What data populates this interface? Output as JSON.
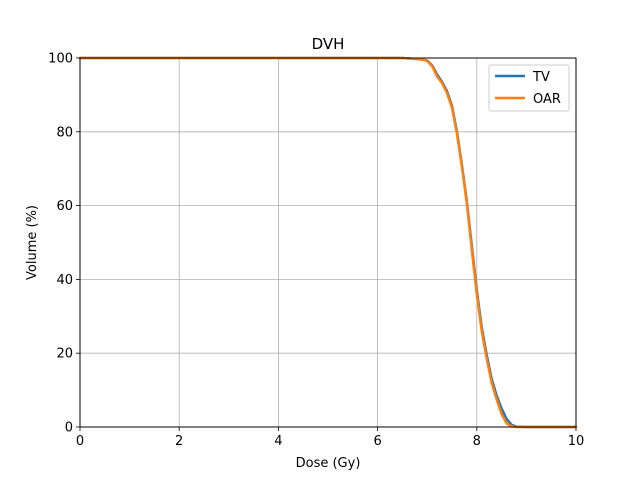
{
  "chart_data": {
    "type": "line",
    "title": "DVH",
    "xlabel": "Dose (Gy)",
    "ylabel": "Volume (%)",
    "xlim": [
      0,
      10
    ],
    "ylim": [
      0,
      100
    ],
    "xticks": [
      0,
      2,
      4,
      6,
      8,
      10
    ],
    "yticks": [
      0,
      20,
      40,
      60,
      80,
      100
    ],
    "xtick_labels": [
      "0",
      "2",
      "4",
      "6",
      "8",
      "10"
    ],
    "ytick_labels": [
      "0",
      "20",
      "40",
      "60",
      "80",
      "100"
    ],
    "grid": true,
    "legend_position": "top-right",
    "series": [
      {
        "name": "TV",
        "color": "#1f77b4",
        "x": [
          0,
          6.5,
          6.9,
          7.0,
          7.1,
          7.2,
          7.3,
          7.4,
          7.5,
          7.6,
          7.7,
          7.8,
          7.9,
          8.0,
          8.1,
          8.2,
          8.3,
          8.4,
          8.5,
          8.6,
          8.7,
          8.8,
          9.0,
          10
        ],
        "y": [
          100,
          100,
          99.6,
          99.3,
          98.0,
          95.5,
          93.5,
          91.0,
          87.0,
          80.0,
          71.0,
          61.0,
          49.0,
          37.0,
          27.0,
          19.5,
          13.0,
          8.5,
          5.0,
          2.2,
          0.6,
          0.1,
          0,
          0
        ]
      },
      {
        "name": "OAR",
        "color": "#ff7f0e",
        "x": [
          0,
          6.5,
          6.9,
          7.0,
          7.1,
          7.2,
          7.3,
          7.4,
          7.5,
          7.6,
          7.7,
          7.8,
          7.9,
          8.0,
          8.1,
          8.2,
          8.3,
          8.4,
          8.5,
          8.6,
          8.7,
          8.8,
          9.0,
          10
        ],
        "y": [
          100,
          100,
          99.6,
          99.2,
          97.8,
          95.0,
          93.2,
          90.5,
          86.5,
          79.5,
          70.5,
          60.5,
          48.0,
          36.0,
          26.0,
          18.5,
          12.0,
          7.5,
          3.5,
          1.0,
          0.2,
          0,
          0,
          0
        ]
      }
    ]
  }
}
